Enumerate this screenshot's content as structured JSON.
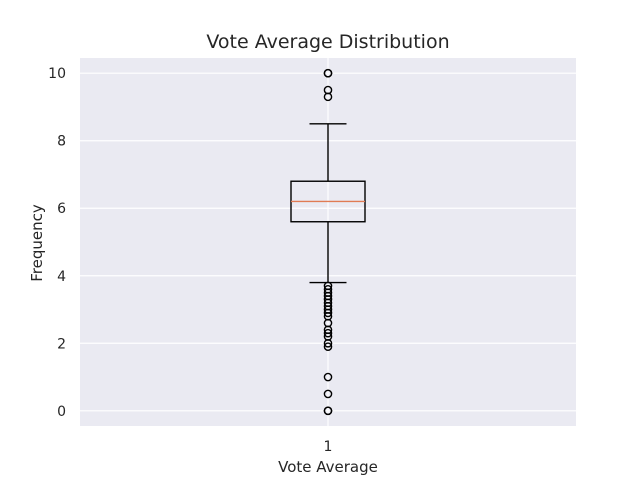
{
  "chart_data": {
    "type": "box",
    "title": "Vote Average Distribution",
    "xlabel": "Vote Average",
    "ylabel": "Frequency",
    "categories": [
      "1"
    ],
    "ylim": [
      -0.45,
      10.45
    ],
    "yticks": [
      0,
      2,
      4,
      6,
      8,
      10
    ],
    "grid": true,
    "box": {
      "whisker_low": 3.8,
      "q1": 5.6,
      "median": 6.2,
      "q3": 6.8,
      "whisker_high": 8.5
    },
    "outliers": [
      10.0,
      10.0,
      9.5,
      9.3,
      3.7,
      3.6,
      3.5,
      3.4,
      3.3,
      3.2,
      3.1,
      3.0,
      2.9,
      2.8,
      2.6,
      2.4,
      2.3,
      2.2,
      2.0,
      1.9,
      1.0,
      0.5,
      0.0,
      0.0
    ],
    "colors": {
      "plot_background": "#eaeaf2",
      "grid": "#ffffff",
      "box": "#000000",
      "median": "#e07b54",
      "text": "#262626"
    }
  }
}
